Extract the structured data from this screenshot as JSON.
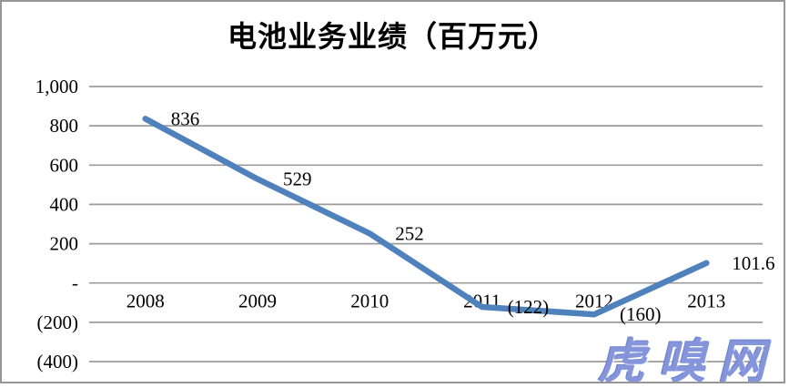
{
  "window": {
    "background": "#ffffff",
    "border_color": "#97979b"
  },
  "chart_data": {
    "type": "line",
    "title": "电池业务业绩（百万元）",
    "categories": [
      "2008",
      "2009",
      "2010",
      "2011",
      "2012",
      "2013"
    ],
    "series": [
      {
        "name": "电池业务业绩",
        "values": [
          836,
          529,
          252,
          -122,
          -160,
          101.6
        ],
        "data_labels": [
          "836",
          "529",
          "252",
          "(122)",
          "(160)",
          "101.6"
        ],
        "color": "#4F81BD",
        "line_width": 6.5
      }
    ],
    "xlabel": "",
    "ylabel": "",
    "ylim": [
      -400,
      1000
    ],
    "y_ticks": [
      1000,
      800,
      600,
      400,
      200,
      0,
      -200,
      -400
    ],
    "y_tick_labels": [
      "1,000",
      "800",
      "600",
      "400",
      "200",
      "-",
      "(200)",
      "(400)"
    ],
    "grid": true,
    "gridline_color": "#9b9b9b",
    "legend": false,
    "legend_position": "none",
    "text_color": "#000000"
  },
  "watermark": {
    "text": "虎嗅网",
    "color": "#8495db"
  }
}
